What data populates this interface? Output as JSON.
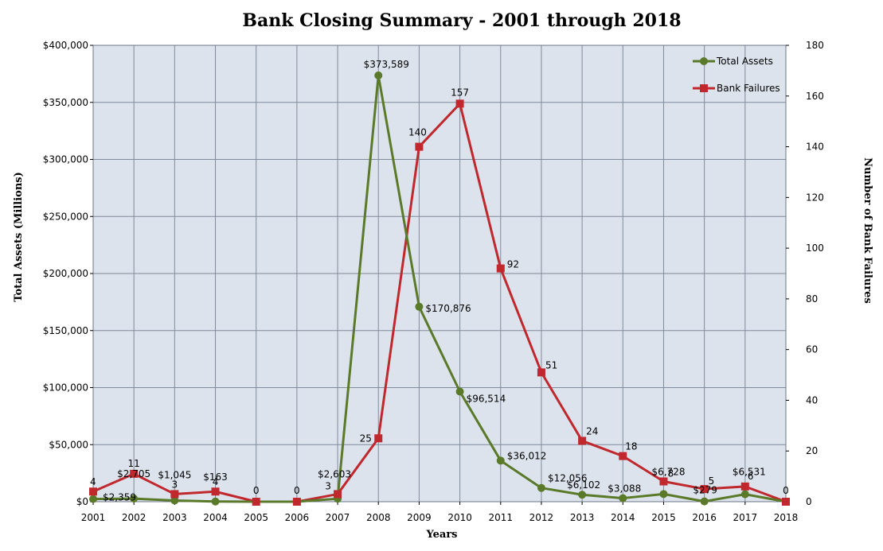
{
  "chart_data": {
    "type": "line",
    "title": "Bank Closing Summary - 2001 through 2018",
    "xlabel": "Years",
    "ylabel": "Total Assets  (Millions)",
    "y2label": "Number of Bank Failures",
    "categories": [
      "2001",
      "2002",
      "2003",
      "2004",
      "2005",
      "2006",
      "2007",
      "2008",
      "2009",
      "2010",
      "2011",
      "2012",
      "2013",
      "2014",
      "2015",
      "2016",
      "2017",
      "2018"
    ],
    "ylim": [
      0,
      400000
    ],
    "y2lim": [
      0,
      180
    ],
    "yticks": [
      "$0",
      "$50,000",
      "$100,000",
      "$150,000",
      "$200,000",
      "$250,000",
      "$300,000",
      "$350,000",
      "$400,000"
    ],
    "y2ticks": [
      "0",
      "20",
      "40",
      "60",
      "80",
      "100",
      "120",
      "140",
      "160",
      "180"
    ],
    "grid": true,
    "legend_position": "top-right",
    "series": [
      {
        "name": "Total Assets",
        "axis": "left",
        "color": "#5a7a2a",
        "marker": "circle",
        "values": [
          2359,
          2705,
          1045,
          163,
          0,
          0,
          2603,
          373589,
          170876,
          96514,
          36012,
          12056,
          6102,
          3088,
          6728,
          279,
          6531,
          0
        ],
        "labels": [
          "$2,359",
          "$2,705",
          "$1,045",
          "$163",
          "0",
          "0",
          "$2,603",
          "$373,589",
          "$170,876",
          "$96,514",
          "$36,012",
          "$12,056",
          "$6,102",
          "$3,088",
          "$6,728",
          "$279",
          "$6,531",
          "0"
        ]
      },
      {
        "name": "Bank Failures",
        "axis": "right",
        "color": "#c0282d",
        "marker": "square",
        "values": [
          4,
          11,
          3,
          4,
          0,
          0,
          3,
          25,
          140,
          157,
          92,
          51,
          24,
          18,
          8,
          5,
          6,
          0
        ],
        "labels": [
          "4",
          "11",
          "3",
          "4",
          "0",
          "0",
          "3",
          "25",
          "140",
          "157",
          "92",
          "51",
          "24",
          "18",
          "8",
          "5",
          "6",
          "0"
        ]
      }
    ],
    "colors": {
      "plot_background": "#dce3ed",
      "grid": "#7f8a9a"
    }
  }
}
